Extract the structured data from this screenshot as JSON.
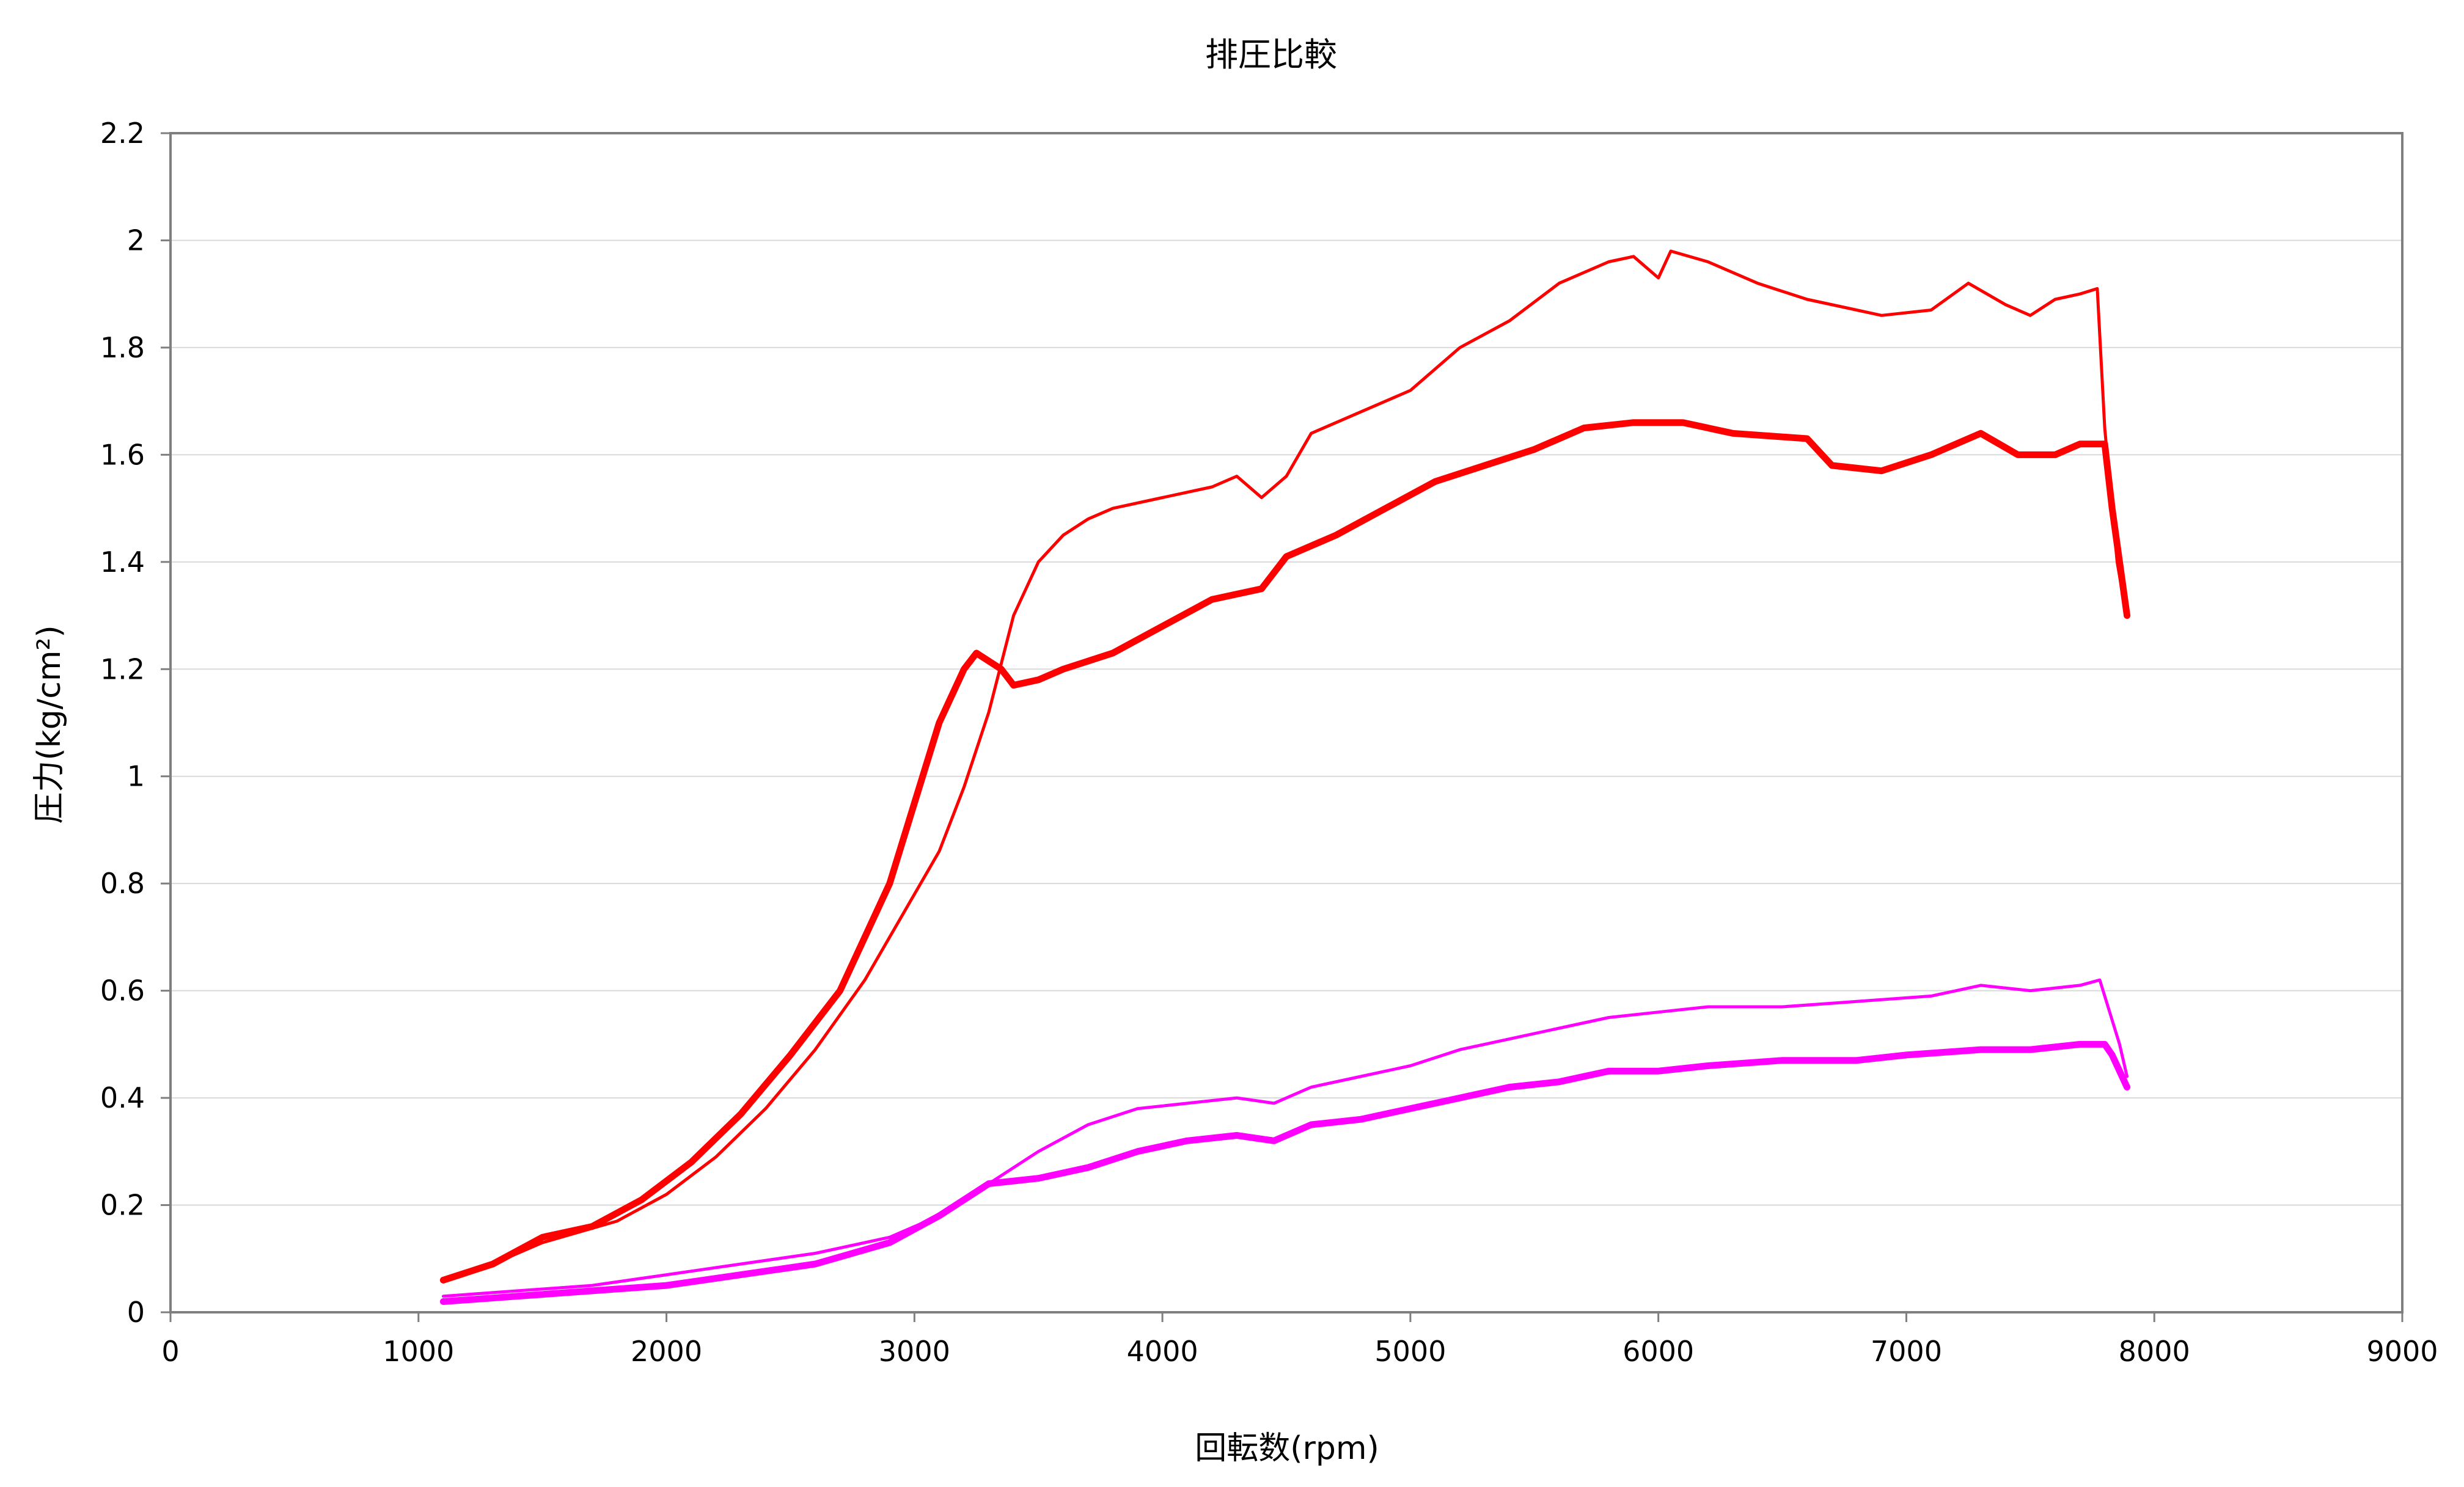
{
  "chart_data": {
    "type": "line",
    "title": "排圧比較",
    "xlabel": "回転数(rpm)",
    "ylabel": "圧力(kg/cm²)",
    "xlim": [
      0,
      9000
    ],
    "ylim": [
      0,
      2.2
    ],
    "x_ticks": [
      0,
      1000,
      2000,
      3000,
      4000,
      5000,
      6000,
      7000,
      8000,
      9000
    ],
    "y_ticks": [
      0,
      0.2,
      0.4,
      0.6,
      0.8,
      1,
      1.2,
      1.4,
      1.6,
      1.8,
      2,
      2.2
    ],
    "x_tick_labels": [
      "0",
      "1000",
      "2000",
      "3000",
      "4000",
      "5000",
      "6000",
      "7000",
      "8000",
      "9000"
    ],
    "y_tick_labels": [
      "0",
      "0.2",
      "0.4",
      "0.6",
      "0.8",
      "1",
      "1.2",
      "1.4",
      "1.6",
      "1.8",
      "2",
      "2.2"
    ],
    "grid": true,
    "legend": "none",
    "series": [
      {
        "color": "#ff0000",
        "line_style": "thin",
        "points": [
          [
            1120,
            0.06
          ],
          [
            1300,
            0.09
          ],
          [
            1500,
            0.13
          ],
          [
            1800,
            0.17
          ],
          [
            2000,
            0.22
          ],
          [
            2200,
            0.29
          ],
          [
            2400,
            0.38
          ],
          [
            2600,
            0.49
          ],
          [
            2800,
            0.62
          ],
          [
            2900,
            0.7
          ],
          [
            3000,
            0.78
          ],
          [
            3100,
            0.86
          ],
          [
            3200,
            0.98
          ],
          [
            3300,
            1.12
          ],
          [
            3400,
            1.3
          ],
          [
            3500,
            1.4
          ],
          [
            3600,
            1.45
          ],
          [
            3700,
            1.48
          ],
          [
            3800,
            1.5
          ],
          [
            4000,
            1.52
          ],
          [
            4200,
            1.54
          ],
          [
            4300,
            1.56
          ],
          [
            4400,
            1.52
          ],
          [
            4500,
            1.56
          ],
          [
            4600,
            1.64
          ],
          [
            4800,
            1.68
          ],
          [
            5000,
            1.72
          ],
          [
            5200,
            1.8
          ],
          [
            5400,
            1.85
          ],
          [
            5600,
            1.92
          ],
          [
            5800,
            1.96
          ],
          [
            5900,
            1.97
          ],
          [
            6000,
            1.93
          ],
          [
            6050,
            1.98
          ],
          [
            6200,
            1.96
          ],
          [
            6400,
            1.92
          ],
          [
            6600,
            1.89
          ],
          [
            6800,
            1.87
          ],
          [
            6900,
            1.86
          ],
          [
            7100,
            1.87
          ],
          [
            7250,
            1.92
          ],
          [
            7400,
            1.88
          ],
          [
            7500,
            1.86
          ],
          [
            7600,
            1.89
          ],
          [
            7700,
            1.9
          ],
          [
            7770,
            1.91
          ],
          [
            7800,
            1.65
          ],
          [
            7820,
            1.55
          ],
          [
            7850,
            1.4
          ],
          [
            7880,
            1.32
          ]
        ]
      },
      {
        "color": "#ff0000",
        "line_style": "thick",
        "points": [
          [
            1100,
            0.06
          ],
          [
            1300,
            0.09
          ],
          [
            1500,
            0.14
          ],
          [
            1700,
            0.16
          ],
          [
            1900,
            0.21
          ],
          [
            2100,
            0.28
          ],
          [
            2300,
            0.37
          ],
          [
            2500,
            0.48
          ],
          [
            2700,
            0.6
          ],
          [
            2800,
            0.7
          ],
          [
            2900,
            0.8
          ],
          [
            3000,
            0.95
          ],
          [
            3100,
            1.1
          ],
          [
            3200,
            1.2
          ],
          [
            3250,
            1.23
          ],
          [
            3350,
            1.2
          ],
          [
            3400,
            1.17
          ],
          [
            3500,
            1.18
          ],
          [
            3600,
            1.2
          ],
          [
            3800,
            1.23
          ],
          [
            4000,
            1.28
          ],
          [
            4200,
            1.33
          ],
          [
            4400,
            1.35
          ],
          [
            4500,
            1.41
          ],
          [
            4700,
            1.45
          ],
          [
            4900,
            1.5
          ],
          [
            5100,
            1.55
          ],
          [
            5300,
            1.58
          ],
          [
            5500,
            1.61
          ],
          [
            5700,
            1.65
          ],
          [
            5900,
            1.66
          ],
          [
            6100,
            1.66
          ],
          [
            6300,
            1.64
          ],
          [
            6600,
            1.63
          ],
          [
            6700,
            1.58
          ],
          [
            6900,
            1.57
          ],
          [
            7100,
            1.6
          ],
          [
            7300,
            1.64
          ],
          [
            7450,
            1.6
          ],
          [
            7600,
            1.6
          ],
          [
            7700,
            1.62
          ],
          [
            7800,
            1.62
          ],
          [
            7830,
            1.5
          ],
          [
            7860,
            1.4
          ],
          [
            7890,
            1.3
          ]
        ]
      },
      {
        "color": "#ff00ff",
        "line_style": "thin",
        "points": [
          [
            1100,
            0.03
          ],
          [
            1400,
            0.04
          ],
          [
            1700,
            0.05
          ],
          [
            2000,
            0.07
          ],
          [
            2300,
            0.09
          ],
          [
            2600,
            0.11
          ],
          [
            2900,
            0.14
          ],
          [
            3100,
            0.18
          ],
          [
            3300,
            0.24
          ],
          [
            3500,
            0.3
          ],
          [
            3700,
            0.35
          ],
          [
            3900,
            0.38
          ],
          [
            4100,
            0.39
          ],
          [
            4300,
            0.4
          ],
          [
            4450,
            0.39
          ],
          [
            4600,
            0.42
          ],
          [
            4800,
            0.44
          ],
          [
            5000,
            0.46
          ],
          [
            5200,
            0.49
          ],
          [
            5400,
            0.51
          ],
          [
            5600,
            0.53
          ],
          [
            5800,
            0.55
          ],
          [
            6000,
            0.56
          ],
          [
            6200,
            0.57
          ],
          [
            6500,
            0.57
          ],
          [
            6800,
            0.58
          ],
          [
            7100,
            0.59
          ],
          [
            7300,
            0.61
          ],
          [
            7500,
            0.6
          ],
          [
            7700,
            0.61
          ],
          [
            7780,
            0.62
          ],
          [
            7820,
            0.56
          ],
          [
            7860,
            0.5
          ],
          [
            7890,
            0.44
          ]
        ]
      },
      {
        "color": "#ff00ff",
        "line_style": "thick",
        "points": [
          [
            1100,
            0.02
          ],
          [
            1400,
            0.03
          ],
          [
            1700,
            0.04
          ],
          [
            2000,
            0.05
          ],
          [
            2300,
            0.07
          ],
          [
            2600,
            0.09
          ],
          [
            2900,
            0.13
          ],
          [
            3100,
            0.18
          ],
          [
            3300,
            0.24
          ],
          [
            3500,
            0.25
          ],
          [
            3700,
            0.27
          ],
          [
            3900,
            0.3
          ],
          [
            4100,
            0.32
          ],
          [
            4300,
            0.33
          ],
          [
            4450,
            0.32
          ],
          [
            4600,
            0.35
          ],
          [
            4800,
            0.36
          ],
          [
            5000,
            0.38
          ],
          [
            5200,
            0.4
          ],
          [
            5400,
            0.42
          ],
          [
            5600,
            0.43
          ],
          [
            5800,
            0.45
          ],
          [
            6000,
            0.45
          ],
          [
            6200,
            0.46
          ],
          [
            6500,
            0.47
          ],
          [
            6800,
            0.47
          ],
          [
            7000,
            0.48
          ],
          [
            7300,
            0.49
          ],
          [
            7500,
            0.49
          ],
          [
            7700,
            0.5
          ],
          [
            7800,
            0.5
          ],
          [
            7830,
            0.48
          ],
          [
            7860,
            0.45
          ],
          [
            7890,
            0.42
          ]
        ]
      }
    ]
  }
}
